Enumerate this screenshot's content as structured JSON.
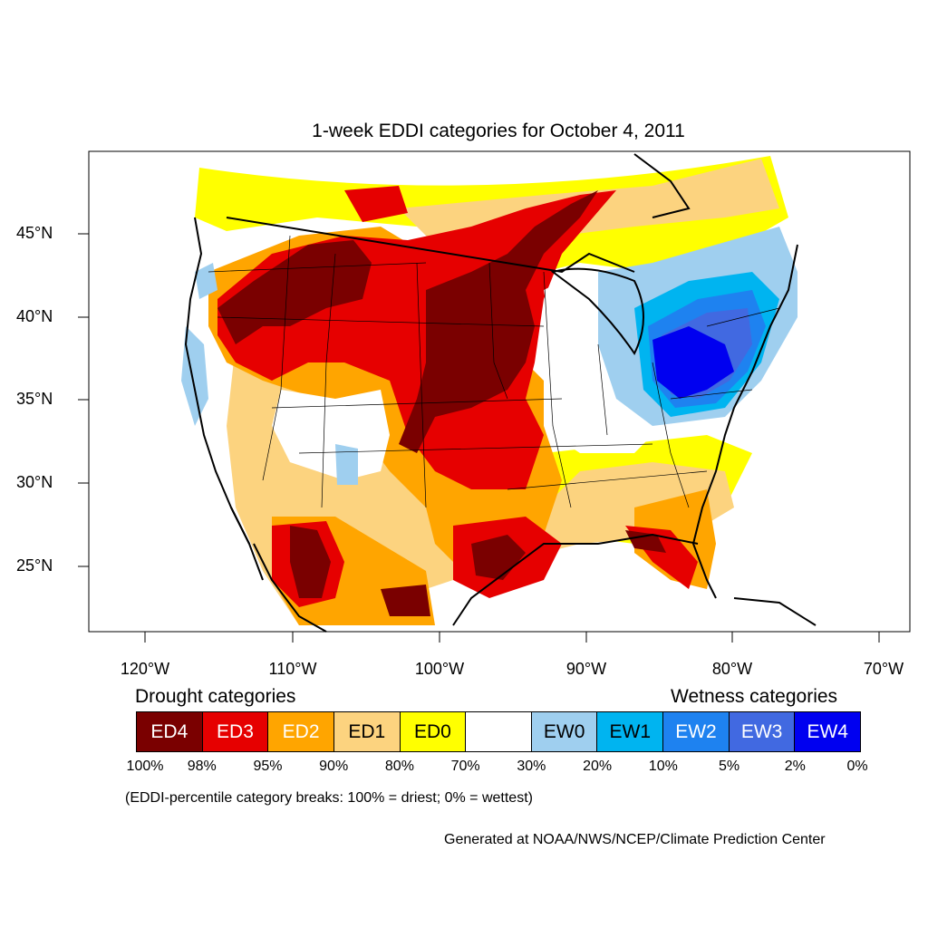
{
  "title": "1-week EDDI categories for October 4, 2011",
  "lat_labels": [
    "45°N",
    "40°N",
    "35°N",
    "30°N",
    "25°N"
  ],
  "lon_labels": [
    "120°W",
    "110°W",
    "100°W",
    "90°W",
    "80°W",
    "70°W"
  ],
  "legend": {
    "drought_heading": "Drought categories",
    "wetness_heading": "Wetness categories",
    "categories": [
      {
        "label": "ED4",
        "color": "#7a0000",
        "text_color": "#ffffff"
      },
      {
        "label": "ED3",
        "color": "#e60000",
        "text_color": "#ffffff"
      },
      {
        "label": "ED2",
        "color": "#ffa500",
        "text_color": "#ffffff"
      },
      {
        "label": "ED1",
        "color": "#fcd37f",
        "text_color": "#000000"
      },
      {
        "label": "ED0",
        "color": "#ffff00",
        "text_color": "#000000"
      },
      {
        "label": "",
        "color": "#ffffff",
        "text_color": "#000000"
      },
      {
        "label": "EW0",
        "color": "#9fcfef",
        "text_color": "#000000"
      },
      {
        "label": "EW1",
        "color": "#00b4f0",
        "text_color": "#000000"
      },
      {
        "label": "EW2",
        "color": "#1e82f0",
        "text_color": "#ffffff"
      },
      {
        "label": "EW3",
        "color": "#4169e1",
        "text_color": "#ffffff"
      },
      {
        "label": "EW4",
        "color": "#0000f0",
        "text_color": "#ffffff"
      }
    ],
    "percent_breaks": [
      "100%",
      "98%",
      "95%",
      "90%",
      "80%",
      "70%",
      "30%",
      "20%",
      "10%",
      "5%",
      "2%",
      "0%"
    ]
  },
  "note": "(EDDI-percentile category breaks: 100% = driest; 0% = wettest)",
  "credit": "Generated at NOAA/NWS/NCEP/Climate Prediction Center"
}
